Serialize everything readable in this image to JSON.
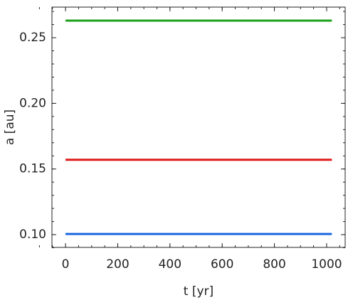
{
  "chart_data": {
    "type": "line",
    "x_label": "t [yr]",
    "y_label": "a [au]",
    "x": [
      0,
      1020
    ],
    "series": [
      {
        "color": "#1aa01a",
        "values": [
          0.263,
          0.263
        ]
      },
      {
        "color": "#e01a1a",
        "values": [
          0.157,
          0.157
        ]
      },
      {
        "color": "#1a66e0",
        "values": [
          0.1005,
          0.1005
        ]
      }
    ],
    "xlim": [
      -52,
      1071
    ],
    "xticks": [
      0,
      200,
      400,
      600,
      800,
      1000
    ],
    "ylim": [
      0.0903,
      0.2733
    ],
    "yticks": [
      {
        "value": 0.1,
        "label": "0.10"
      },
      0.15,
      {
        "value": 0.2,
        "label": "0.20"
      },
      0.25
    ],
    "grid": false
  }
}
